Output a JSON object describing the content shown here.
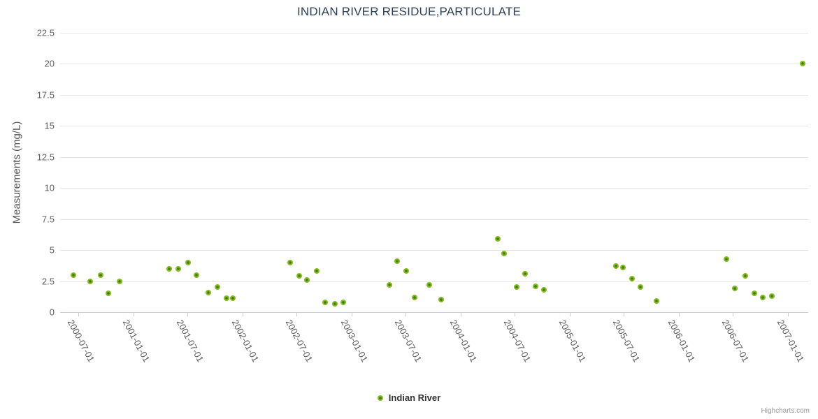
{
  "chart": {
    "title": "INDIAN RIVER RESIDUE,PARTICULATE",
    "credits_label": "Highcharts.com",
    "legend": {
      "label": "Indian River"
    },
    "colors": {
      "marker_outer": "#84ba1e",
      "marker_inner": "#3e7f0c",
      "grid": "#e6e6e6",
      "axis_line": "#c0d0e0",
      "title_text": "#2c4058",
      "axis_label_text": "#606060"
    }
  },
  "chart_data": {
    "type": "scatter",
    "title": "INDIAN RIVER RESIDUE,PARTICULATE",
    "xlabel": "",
    "ylabel": "Measurements (mg/L)",
    "grid": true,
    "legend_position": "bottom",
    "x_axis": {
      "type": "datetime",
      "min": "2000-05-01",
      "max": "2007-03-10",
      "tick_labels": [
        "2000-07-01",
        "2001-01-01",
        "2001-07-01",
        "2002-01-01",
        "2002-07-01",
        "2003-01-01",
        "2003-07-01",
        "2004-01-01",
        "2004-07-01",
        "2005-01-01",
        "2005-07-01",
        "2006-01-01",
        "2006-07-01",
        "2007-01-01"
      ]
    },
    "y_axis": {
      "min": 0,
      "max": 22.5,
      "tick_interval": 2.5,
      "ticks": [
        {
          "v": 0,
          "label": "0"
        },
        {
          "v": 2.5,
          "label": "2.5"
        },
        {
          "v": 5,
          "label": "5"
        },
        {
          "v": 7.5,
          "label": "7.5"
        },
        {
          "v": 10,
          "label": "10"
        },
        {
          "v": 12.5,
          "label": "12.5"
        },
        {
          "v": 15,
          "label": "15"
        },
        {
          "v": 17.5,
          "label": "17.5"
        },
        {
          "v": 20,
          "label": "20"
        },
        {
          "v": 22.5,
          "label": "22.5"
        }
      ]
    },
    "series": [
      {
        "name": "Indian River",
        "color": "#84ba1e",
        "points": [
          [
            "2000-06-14",
            3.0
          ],
          [
            "2000-08-10",
            2.5
          ],
          [
            "2000-09-14",
            3.0
          ],
          [
            "2000-10-10",
            1.5
          ],
          [
            "2000-11-16",
            2.5
          ],
          [
            "2001-04-30",
            3.5
          ],
          [
            "2001-05-31",
            3.5
          ],
          [
            "2001-07-03",
            4.0
          ],
          [
            "2001-08-01",
            3.0
          ],
          [
            "2001-09-10",
            1.6
          ],
          [
            "2001-10-09",
            2.0
          ],
          [
            "2001-11-10",
            1.1
          ],
          [
            "2001-12-01",
            1.1
          ],
          [
            "2002-06-09",
            4.0
          ],
          [
            "2002-07-10",
            2.9
          ],
          [
            "2002-08-05",
            2.6
          ],
          [
            "2002-09-06",
            3.3
          ],
          [
            "2002-10-04",
            0.8
          ],
          [
            "2002-11-06",
            0.7
          ],
          [
            "2002-12-04",
            0.8
          ],
          [
            "2003-05-09",
            2.2
          ],
          [
            "2003-06-03",
            4.1
          ],
          [
            "2003-07-04",
            3.3
          ],
          [
            "2003-08-01",
            1.2
          ],
          [
            "2003-09-19",
            2.2
          ],
          [
            "2003-10-29",
            1.0
          ],
          [
            "2004-05-04",
            5.9
          ],
          [
            "2004-05-25",
            4.7
          ],
          [
            "2004-07-06",
            2.0
          ],
          [
            "2004-08-04",
            3.1
          ],
          [
            "2004-09-08",
            2.1
          ],
          [
            "2004-10-06",
            1.8
          ],
          [
            "2005-06-05",
            3.7
          ],
          [
            "2005-06-28",
            3.6
          ],
          [
            "2005-07-28",
            2.7
          ],
          [
            "2005-08-26",
            2.0
          ],
          [
            "2005-10-19",
            0.9
          ],
          [
            "2006-06-10",
            4.3
          ],
          [
            "2006-07-08",
            1.9
          ],
          [
            "2006-08-12",
            2.9
          ],
          [
            "2006-09-10",
            1.5
          ],
          [
            "2006-10-09",
            1.2
          ],
          [
            "2006-11-08",
            1.3
          ],
          [
            "2007-02-20",
            20.0
          ]
        ]
      }
    ]
  }
}
